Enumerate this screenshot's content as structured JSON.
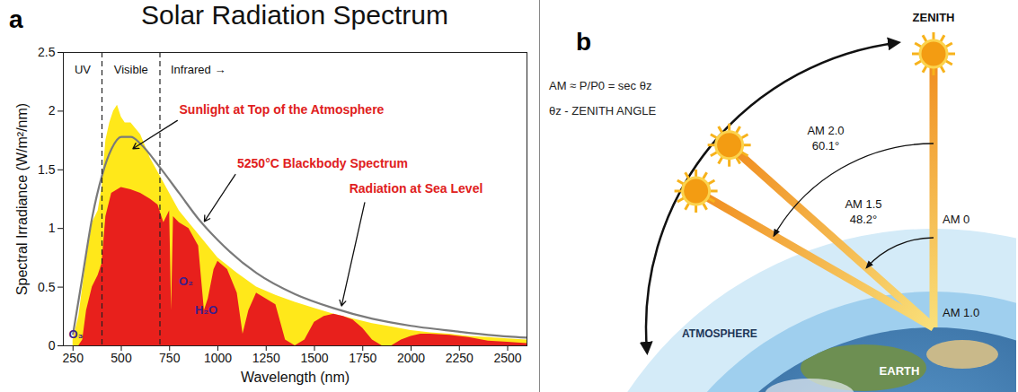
{
  "chart_data": {
    "type": "area",
    "title": "Solar Radiation Spectrum",
    "panel_label": "a",
    "x_label": "Wavelength (nm)",
    "y_label": "Spectral Irradiance (W/m²/nm)",
    "xlim": [
      200,
      2600
    ],
    "xticks": [
      250,
      500,
      750,
      1000,
      1250,
      1500,
      1750,
      2000,
      2250,
      2500
    ],
    "ylim": [
      0,
      2.5
    ],
    "yticks": [
      0,
      0.5,
      1,
      1.5,
      2,
      2.5
    ],
    "grid": false,
    "regions": {
      "bounds": [
        400,
        700
      ],
      "labels": [
        "UV",
        "Visible",
        "Infrared →"
      ]
    },
    "absorption_labels": [
      {
        "label": "O₃",
        "x": 265
      },
      {
        "label": "O₂",
        "x": 760
      },
      {
        "label": "H₂O",
        "x": 940
      }
    ],
    "series": [
      {
        "name": "Sunlight at Top of the Atmosphere",
        "color": "#ffe81a",
        "type": "area",
        "x": [
          250,
          280,
          300,
          320,
          350,
          380,
          400,
          420,
          440,
          460,
          480,
          500,
          520,
          550,
          600,
          650,
          700,
          750,
          800,
          850,
          900,
          1000,
          1100,
          1200,
          1300,
          1400,
          1500,
          1600,
          1700,
          1800,
          1900,
          2000,
          2100,
          2200,
          2300,
          2400,
          2500,
          2600
        ],
        "values": [
          0.05,
          0.25,
          0.5,
          0.75,
          1.05,
          1.15,
          1.35,
          1.75,
          1.9,
          2.0,
          2.05,
          1.95,
          1.9,
          1.9,
          1.8,
          1.6,
          1.45,
          1.3,
          1.15,
          1.05,
          0.95,
          0.75,
          0.62,
          0.5,
          0.43,
          0.37,
          0.32,
          0.27,
          0.23,
          0.19,
          0.16,
          0.13,
          0.11,
          0.1,
          0.08,
          0.07,
          0.06,
          0.05
        ]
      },
      {
        "name": "Radiation at Sea Level",
        "color": "#e8201c",
        "type": "area",
        "x": [
          280,
          300,
          320,
          350,
          380,
          400,
          420,
          450,
          500,
          550,
          600,
          650,
          690,
          720,
          750,
          760,
          770,
          800,
          850,
          900,
          930,
          950,
          980,
          1000,
          1050,
          1100,
          1130,
          1160,
          1200,
          1250,
          1300,
          1350,
          1400,
          1450,
          1500,
          1550,
          1600,
          1650,
          1700,
          1750,
          1800,
          1850,
          1900,
          1950,
          2000,
          2050,
          2100,
          2200,
          2300,
          2400,
          2500,
          2600
        ],
        "values": [
          0,
          0.05,
          0.3,
          0.5,
          0.6,
          0.7,
          1.1,
          1.3,
          1.35,
          1.33,
          1.3,
          1.25,
          1.2,
          1.05,
          1.15,
          0.3,
          1.1,
          1.05,
          1.0,
          0.85,
          0.3,
          0.4,
          0.65,
          0.72,
          0.65,
          0.45,
          0.1,
          0.3,
          0.45,
          0.4,
          0.35,
          0.05,
          0,
          0.05,
          0.2,
          0.25,
          0.27,
          0.25,
          0.22,
          0.15,
          0.05,
          0,
          0,
          0.05,
          0.08,
          0.1,
          0.1,
          0.09,
          0.07,
          0.04,
          0.03,
          0.02
        ]
      },
      {
        "name": "5250°C Blackbody Spectrum",
        "color": "#7a7a7a",
        "type": "line",
        "x": [
          250,
          300,
          350,
          400,
          450,
          500,
          550,
          600,
          700,
          800,
          900,
          1000,
          1200,
          1400,
          1600,
          1800,
          2000,
          2250,
          2500,
          2600
        ],
        "values": [
          0.1,
          0.6,
          1.1,
          1.45,
          1.68,
          1.78,
          1.78,
          1.72,
          1.52,
          1.3,
          1.08,
          0.9,
          0.62,
          0.44,
          0.32,
          0.23,
          0.17,
          0.12,
          0.08,
          0.07
        ]
      }
    ]
  },
  "diagram": {
    "panel_label": "b",
    "formula": "AM ≈ P/P0 = sec θz",
    "angle_note": "θz - ZENITH ANGLE",
    "zenith_label": "ZENITH",
    "atmosphere_label": "ATMOSPHERE",
    "earth_label": "EARTH",
    "vertical_beam": {
      "top_label": "AM 0",
      "bottom_label": "AM 1.0"
    },
    "slant_beams": [
      {
        "label": "AM 2.0",
        "angle": 60.1,
        "angle_label": "60.1°"
      },
      {
        "label": "AM 1.5",
        "angle": 48.2,
        "angle_label": "48.2°"
      }
    ]
  }
}
